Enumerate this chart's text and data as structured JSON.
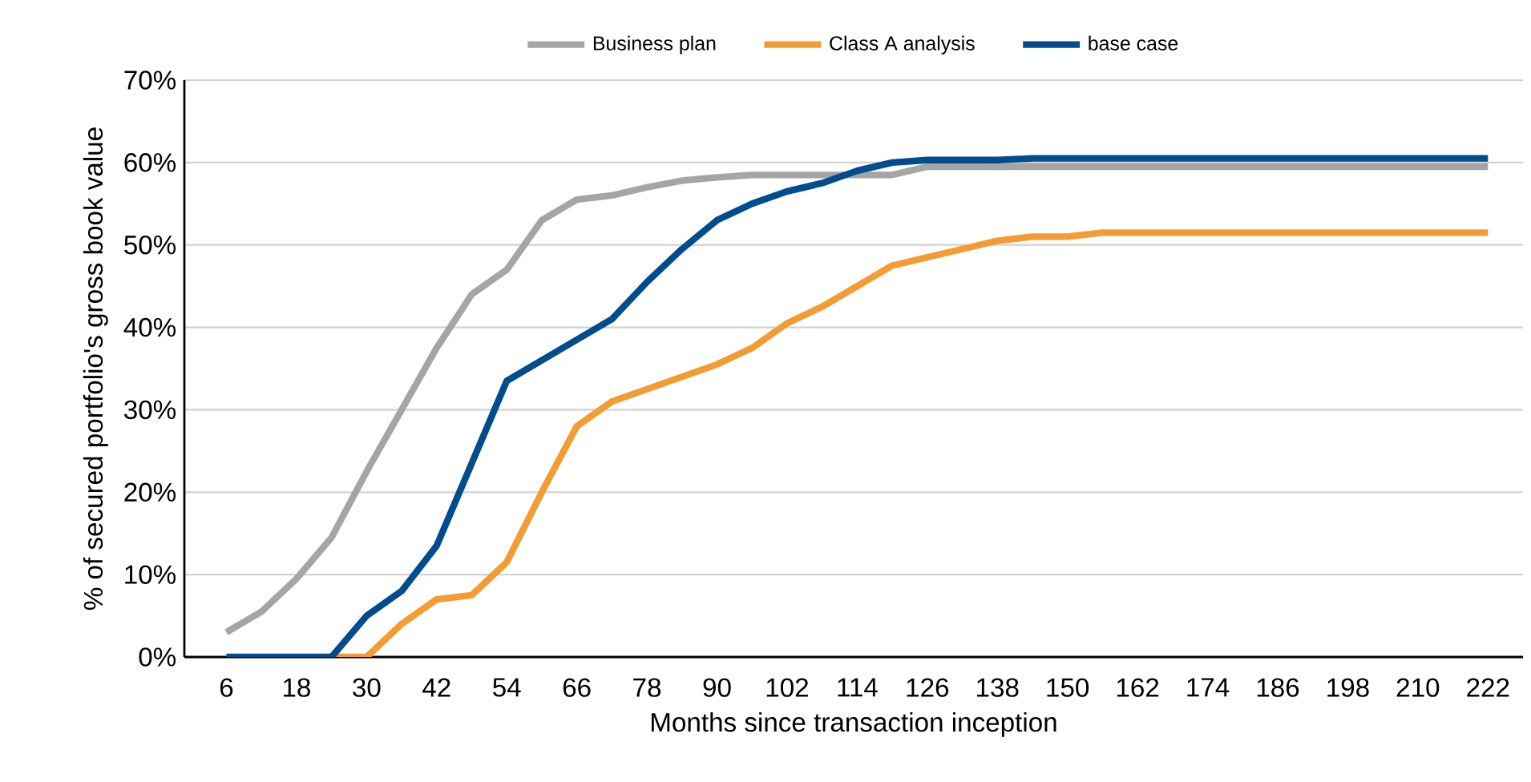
{
  "chart_data": {
    "type": "line",
    "xlabel": "Months since transaction inception",
    "ylabel": "% of secured portfolio's gross book value",
    "categories": [
      "6",
      null,
      "18",
      null,
      "30",
      null,
      "42",
      null,
      "54",
      null,
      "66",
      null,
      "78",
      null,
      "90",
      null,
      "102",
      null,
      "114",
      null,
      "126",
      null,
      "138",
      null,
      "150",
      null,
      "162",
      null,
      "174",
      null,
      "186",
      null,
      "198",
      null,
      "210",
      null,
      "222"
    ],
    "series": [
      {
        "name": "Business plan",
        "color": "#a5a5a5",
        "values": [
          3,
          5.5,
          9.5,
          14.5,
          22.5,
          30,
          37.5,
          44,
          47,
          53,
          55.5,
          56,
          57,
          57.8,
          58.2,
          58.5,
          58.5,
          58.5,
          58.5,
          58.5,
          59.5,
          59.5,
          59.5,
          59.5,
          59.5,
          59.5,
          59.5,
          59.5,
          59.5,
          59.5,
          59.5,
          59.5,
          59.5,
          59.5,
          59.5,
          59.5,
          59.5
        ]
      },
      {
        "name": "Class A analysis",
        "color": "#f39c33",
        "values": [
          null,
          null,
          null,
          0,
          0,
          4,
          7,
          7.5,
          11.5,
          20,
          28,
          31,
          32.5,
          34,
          35.5,
          37.5,
          40.5,
          42.5,
          45,
          47.5,
          48.5,
          49.5,
          50.5,
          51,
          51,
          51.5,
          51.5,
          51.5,
          51.5,
          51.5,
          51.5,
          51.5,
          51.5,
          51.5,
          51.5,
          51.5,
          51.5
        ]
      },
      {
        "name": "base case",
        "color": "#004c8c",
        "values": [
          0,
          0,
          0,
          0,
          5,
          8,
          13.5,
          23.5,
          33.5,
          36,
          38.5,
          41,
          45.5,
          49.5,
          53,
          55,
          56.5,
          57.5,
          59,
          60,
          60.3,
          60.3,
          60.3,
          60.5,
          60.5,
          60.5,
          60.5,
          60.5,
          60.5,
          60.5,
          60.5,
          60.5,
          60.5,
          60.5,
          60.5,
          60.5,
          60.5
        ]
      }
    ],
    "ylim": [
      0,
      70
    ],
    "yticks": [
      {
        "value": 0,
        "label": "0%"
      },
      {
        "value": 10,
        "label": "10%"
      },
      {
        "value": 20,
        "label": "20%"
      },
      {
        "value": 30,
        "label": "30%"
      },
      {
        "value": 40,
        "label": "40%"
      },
      {
        "value": 50,
        "label": "50%"
      },
      {
        "value": 60,
        "label": "60%"
      },
      {
        "value": 70,
        "label": "70%"
      }
    ],
    "grid": "y",
    "legend": "top",
    "marker": "none",
    "line_style": "solid"
  }
}
